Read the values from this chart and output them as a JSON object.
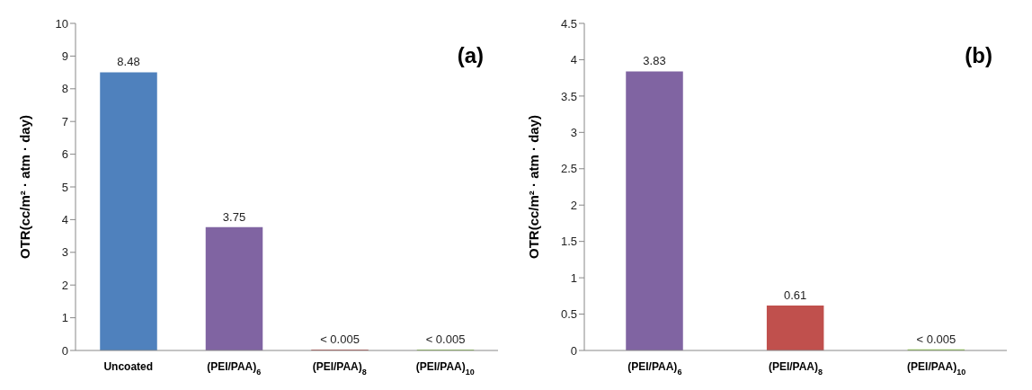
{
  "chart_data": [
    {
      "type": "bar",
      "ylabel": "OTR(cc/m² · atm · day)",
      "categories": [
        "Uncoated",
        "(PEI/PAA)$_{6}$",
        "(PEI/PAA)$_{8}$",
        "(PEI/PAA)$_{10}$"
      ],
      "values": [
        8.48,
        3.75,
        0.005,
        0.005
      ],
      "colors": [
        "#4f81bd",
        "#8064a2",
        "#c0504d",
        "#92d050"
      ],
      "value_labels": [
        "8.48",
        "3.75",
        "< 0.005",
        "< 0.005"
      ],
      "ylim": [
        0,
        10
      ],
      "yticks": [
        0,
        1,
        2,
        3,
        4,
        5,
        6,
        7,
        8,
        9,
        10
      ],
      "grid": false,
      "legend": false,
      "annotations": [
        "(a)"
      ]
    },
    {
      "type": "bar",
      "ylabel": "OTR(cc/m² · atm · day)",
      "categories": [
        "(PEI/PAA)$_{6}$",
        "(PEI/PAA)$_{8}$",
        "(PEI/PAA)$_{10}$"
      ],
      "values": [
        3.83,
        0.61,
        0.005
      ],
      "colors": [
        "#8064a2",
        "#c0504d",
        "#92d050"
      ],
      "value_labels": [
        "3.83",
        "0.61",
        "< 0.005"
      ],
      "ylim": [
        0,
        4.5
      ],
      "yticks": [
        0,
        0.5,
        1,
        1.5,
        2,
        2.5,
        3,
        3.5,
        4,
        4.5
      ],
      "grid": false,
      "legend": false,
      "annotations": [
        "(b)"
      ]
    }
  ]
}
